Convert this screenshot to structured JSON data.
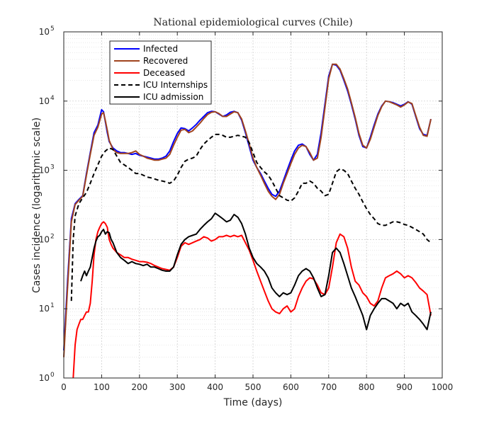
{
  "chart_data": {
    "type": "line",
    "title": "National epidemiological curves (Chile)",
    "xlabel": "Time (days)",
    "ylabel": "Cases incidence (logarithmic scale)",
    "xlim": [
      0,
      1000
    ],
    "ylim": [
      1,
      100000
    ],
    "yscale": "log",
    "grid": true,
    "legend_position": "top-left",
    "x_ticks": [
      0,
      100,
      200,
      300,
      400,
      500,
      600,
      700,
      800,
      900,
      1000
    ],
    "y_ticks": [
      {
        "base": "10",
        "exp": "0",
        "value": 1
      },
      {
        "base": "10",
        "exp": "1",
        "value": 10
      },
      {
        "base": "10",
        "exp": "2",
        "value": 100
      },
      {
        "base": "10",
        "exp": "3",
        "value": 1000
      },
      {
        "base": "10",
        "exp": "4",
        "value": 10000
      },
      {
        "base": "10",
        "exp": "5",
        "value": 100000
      }
    ],
    "series": [
      {
        "name": "Infected",
        "color": "#0000ff",
        "style": "solid",
        "x": [
          0,
          10,
          20,
          30,
          40,
          50,
          60,
          70,
          80,
          90,
          100,
          105,
          110,
          115,
          120,
          130,
          140,
          150,
          160,
          170,
          180,
          190,
          200,
          210,
          220,
          230,
          240,
          250,
          260,
          270,
          280,
          290,
          300,
          310,
          320,
          330,
          340,
          350,
          360,
          370,
          380,
          390,
          400,
          410,
          420,
          430,
          440,
          450,
          460,
          470,
          480,
          490,
          500,
          510,
          520,
          530,
          540,
          550,
          560,
          570,
          580,
          590,
          600,
          610,
          620,
          630,
          640,
          650,
          660,
          670,
          680,
          690,
          700,
          710,
          720,
          730,
          740,
          750,
          760,
          770,
          780,
          790,
          800,
          810,
          820,
          830,
          840,
          850,
          860,
          870,
          880,
          890,
          900,
          910,
          920,
          930,
          940,
          950,
          960,
          970
        ],
        "y": [
          2.5,
          25,
          200,
          330,
          380,
          430,
          900,
          1800,
          3500,
          4500,
          7500,
          7000,
          5000,
          3500,
          2600,
          2100,
          1900,
          1800,
          1800,
          1750,
          1700,
          1750,
          1650,
          1600,
          1550,
          1500,
          1450,
          1450,
          1500,
          1600,
          1900,
          2600,
          3400,
          4100,
          4000,
          3700,
          4100,
          4600,
          5300,
          6000,
          6800,
          7100,
          7000,
          6500,
          6000,
          6300,
          6900,
          7100,
          6800,
          5300,
          3500,
          2200,
          1400,
          1100,
          900,
          700,
          550,
          450,
          420,
          500,
          700,
          1000,
          1400,
          1900,
          2300,
          2400,
          2200,
          1700,
          1400,
          1700,
          3500,
          9000,
          23000,
          34000,
          33000,
          28000,
          20000,
          14000,
          9000,
          5500,
          3200,
          2200,
          2100,
          3000,
          4500,
          6500,
          8500,
          10000,
          9800,
          9500,
          9000,
          8500,
          9000,
          9800,
          9000,
          6000,
          4000,
          3300,
          3200,
          5500
        ]
      },
      {
        "name": "Recovered",
        "color": "#a0431e",
        "style": "solid",
        "x": [
          0,
          10,
          20,
          30,
          40,
          50,
          60,
          70,
          80,
          90,
          100,
          105,
          110,
          115,
          120,
          130,
          140,
          150,
          160,
          170,
          180,
          190,
          200,
          210,
          220,
          230,
          240,
          250,
          260,
          270,
          280,
          290,
          300,
          310,
          320,
          330,
          340,
          350,
          360,
          370,
          380,
          390,
          400,
          410,
          420,
          430,
          440,
          450,
          460,
          470,
          480,
          490,
          500,
          510,
          520,
          530,
          540,
          550,
          560,
          570,
          580,
          590,
          600,
          610,
          620,
          630,
          640,
          650,
          660,
          670,
          680,
          690,
          700,
          710,
          720,
          730,
          740,
          750,
          760,
          770,
          780,
          790,
          800,
          810,
          820,
          830,
          840,
          850,
          860,
          870,
          880,
          890,
          900,
          910,
          920,
          930,
          940,
          950,
          960,
          970
        ],
        "y": [
          2,
          20,
          180,
          320,
          370,
          420,
          850,
          1700,
          3200,
          4200,
          6500,
          6800,
          5200,
          3800,
          2700,
          2000,
          1800,
          1750,
          1750,
          1750,
          1800,
          1900,
          1700,
          1600,
          1500,
          1450,
          1400,
          1400,
          1450,
          1500,
          1700,
          2300,
          3000,
          3800,
          3900,
          3500,
          3700,
          4200,
          4800,
          5600,
          6400,
          6900,
          7000,
          6600,
          6000,
          6000,
          6500,
          7000,
          6800,
          5500,
          3700,
          2400,
          1500,
          1100,
          850,
          650,
          500,
          420,
          380,
          450,
          650,
          900,
          1250,
          1700,
          2100,
          2300,
          2200,
          1800,
          1400,
          1500,
          3000,
          8000,
          21000,
          34000,
          34000,
          29000,
          21000,
          15000,
          9500,
          5800,
          3400,
          2300,
          2100,
          2800,
          4200,
          6200,
          8300,
          10000,
          9800,
          9300,
          8800,
          8200,
          8800,
          9700,
          9200,
          6200,
          4200,
          3200,
          3100,
          5500
        ]
      },
      {
        "name": "Deceased",
        "color": "#ff0000",
        "style": "solid",
        "x": [
          25,
          30,
          35,
          40,
          45,
          50,
          55,
          60,
          65,
          70,
          75,
          80,
          85,
          90,
          95,
          100,
          105,
          110,
          115,
          120,
          125,
          130,
          140,
          150,
          160,
          170,
          180,
          190,
          200,
          210,
          220,
          230,
          240,
          250,
          260,
          270,
          280,
          290,
          300,
          310,
          320,
          330,
          340,
          350,
          360,
          370,
          380,
          390,
          400,
          410,
          420,
          430,
          440,
          450,
          460,
          470,
          480,
          490,
          500,
          510,
          520,
          530,
          540,
          550,
          560,
          570,
          580,
          590,
          600,
          610,
          620,
          630,
          640,
          650,
          660,
          670,
          680,
          690,
          700,
          710,
          720,
          730,
          740,
          750,
          760,
          770,
          780,
          790,
          800,
          810,
          820,
          830,
          840,
          850,
          860,
          870,
          880,
          890,
          900,
          910,
          920,
          930,
          940,
          950,
          960,
          970
        ],
        "y": [
          1,
          3,
          5,
          6,
          7,
          7,
          8,
          9,
          9,
          12,
          25,
          60,
          100,
          130,
          150,
          170,
          180,
          170,
          150,
          100,
          85,
          75,
          65,
          60,
          55,
          55,
          52,
          50,
          48,
          48,
          47,
          45,
          42,
          40,
          38,
          37,
          36,
          40,
          55,
          80,
          90,
          85,
          90,
          95,
          100,
          110,
          105,
          95,
          100,
          110,
          110,
          115,
          110,
          115,
          110,
          115,
          90,
          70,
          50,
          35,
          25,
          18,
          13,
          10,
          9,
          8.5,
          10,
          11,
          9,
          10,
          15,
          20,
          25,
          28,
          27,
          22,
          17,
          16,
          20,
          40,
          90,
          120,
          110,
          75,
          40,
          25,
          22,
          17,
          15,
          12,
          11,
          13,
          20,
          28,
          30,
          32,
          35,
          32,
          28,
          30,
          28,
          24,
          20,
          18,
          16,
          8
        ]
      },
      {
        "name": "ICU Internships",
        "color": "#000000",
        "style": "dashed",
        "x": [
          20,
          25,
          30,
          40,
          50,
          60,
          70,
          80,
          90,
          100,
          110,
          120,
          130,
          140,
          150,
          160,
          170,
          180,
          190,
          200,
          210,
          220,
          230,
          240,
          250,
          260,
          270,
          280,
          290,
          300,
          310,
          320,
          330,
          340,
          350,
          360,
          370,
          380,
          390,
          400,
          410,
          420,
          430,
          440,
          450,
          460,
          470,
          480,
          490,
          500,
          510,
          520,
          530,
          540,
          550,
          560,
          570,
          580,
          590,
          600,
          610,
          620,
          630,
          640,
          650,
          660,
          670,
          680,
          690,
          700,
          710,
          720,
          730,
          740,
          750,
          760,
          770,
          780,
          790,
          800,
          810,
          820,
          830,
          840,
          850,
          860,
          870,
          880,
          890,
          900,
          910,
          920,
          930,
          940,
          950,
          960,
          970
        ],
        "y": [
          13,
          100,
          220,
          330,
          400,
          480,
          650,
          900,
          1200,
          1600,
          1900,
          2100,
          2000,
          1600,
          1300,
          1200,
          1100,
          1000,
          900,
          900,
          850,
          800,
          780,
          750,
          720,
          700,
          680,
          650,
          700,
          850,
          1100,
          1350,
          1450,
          1500,
          1600,
          2000,
          2400,
          2700,
          3000,
          3300,
          3300,
          3200,
          3000,
          3000,
          3100,
          3200,
          3100,
          3000,
          2500,
          1800,
          1300,
          1100,
          950,
          850,
          700,
          550,
          430,
          400,
          370,
          360,
          400,
          500,
          650,
          650,
          700,
          650,
          550,
          500,
          430,
          450,
          650,
          950,
          1050,
          1000,
          900,
          700,
          550,
          450,
          350,
          280,
          230,
          200,
          170,
          160,
          160,
          170,
          180,
          180,
          175,
          165,
          160,
          150,
          140,
          130,
          120,
          100,
          90
        ]
      },
      {
        "name": "ICU admission",
        "color": "#000000",
        "style": "solid",
        "x": [
          45,
          50,
          55,
          60,
          65,
          70,
          75,
          80,
          85,
          90,
          95,
          100,
          105,
          110,
          115,
          120,
          125,
          130,
          140,
          150,
          160,
          170,
          180,
          190,
          200,
          210,
          220,
          230,
          240,
          250,
          260,
          270,
          280,
          290,
          300,
          310,
          320,
          330,
          340,
          350,
          360,
          370,
          380,
          390,
          400,
          410,
          420,
          430,
          440,
          450,
          460,
          470,
          480,
          490,
          500,
          510,
          520,
          530,
          540,
          550,
          560,
          570,
          580,
          590,
          600,
          610,
          620,
          630,
          640,
          650,
          660,
          670,
          680,
          690,
          700,
          710,
          720,
          730,
          740,
          750,
          760,
          770,
          780,
          790,
          800,
          810,
          820,
          830,
          840,
          850,
          860,
          870,
          880,
          890,
          900,
          910,
          920,
          930,
          940,
          950,
          960,
          970
        ],
        "y": [
          25,
          30,
          35,
          30,
          35,
          40,
          55,
          75,
          95,
          110,
          115,
          130,
          140,
          120,
          130,
          125,
          100,
          90,
          65,
          55,
          50,
          45,
          48,
          45,
          44,
          42,
          44,
          40,
          40,
          38,
          36,
          35,
          35,
          40,
          60,
          85,
          100,
          110,
          115,
          120,
          140,
          160,
          180,
          200,
          240,
          220,
          200,
          180,
          190,
          230,
          210,
          170,
          120,
          75,
          55,
          45,
          40,
          35,
          28,
          20,
          17,
          15,
          17,
          16,
          17,
          22,
          30,
          35,
          38,
          35,
          28,
          20,
          15,
          16,
          30,
          65,
          75,
          65,
          45,
          30,
          20,
          15,
          11,
          8,
          5,
          8,
          10,
          12,
          14,
          14,
          13,
          12,
          10,
          12,
          11,
          12,
          9,
          8,
          7,
          6,
          5,
          9
        ]
      }
    ]
  }
}
